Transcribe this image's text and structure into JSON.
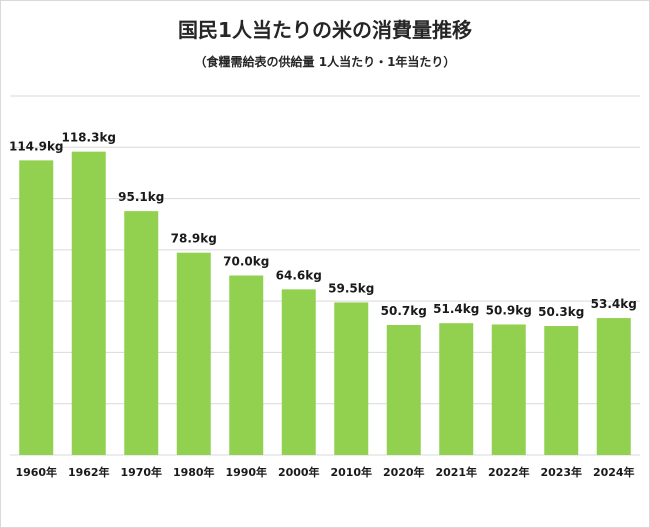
{
  "chart_data": {
    "type": "bar",
    "title": "国民1人当たりの米の消費量推移",
    "subtitle": "（食糧需給表の供給量 1人当たり・1年当たり）",
    "categories": [
      "1960年",
      "1962年",
      "1970年",
      "1980年",
      "1990年",
      "2000年",
      "2010年",
      "2020年",
      "2021年",
      "2022年",
      "2023年",
      "2024年"
    ],
    "values": [
      114.9,
      118.3,
      95.1,
      78.9,
      70.0,
      64.6,
      59.5,
      50.7,
      51.4,
      50.9,
      50.3,
      53.4
    ],
    "data_labels": [
      "114.9kg",
      "118.3kg",
      "95.1kg",
      "78.9kg",
      "70.0kg",
      "64.6kg",
      "59.5kg",
      "50.7kg",
      "51.4kg",
      "50.9kg",
      "50.3kg",
      "53.4kg"
    ],
    "unit": "kg",
    "ylim": [
      0,
      140
    ],
    "grid": true,
    "legend": "none",
    "bar_color": "#92d050",
    "grid_color": "#d9d9d9"
  }
}
